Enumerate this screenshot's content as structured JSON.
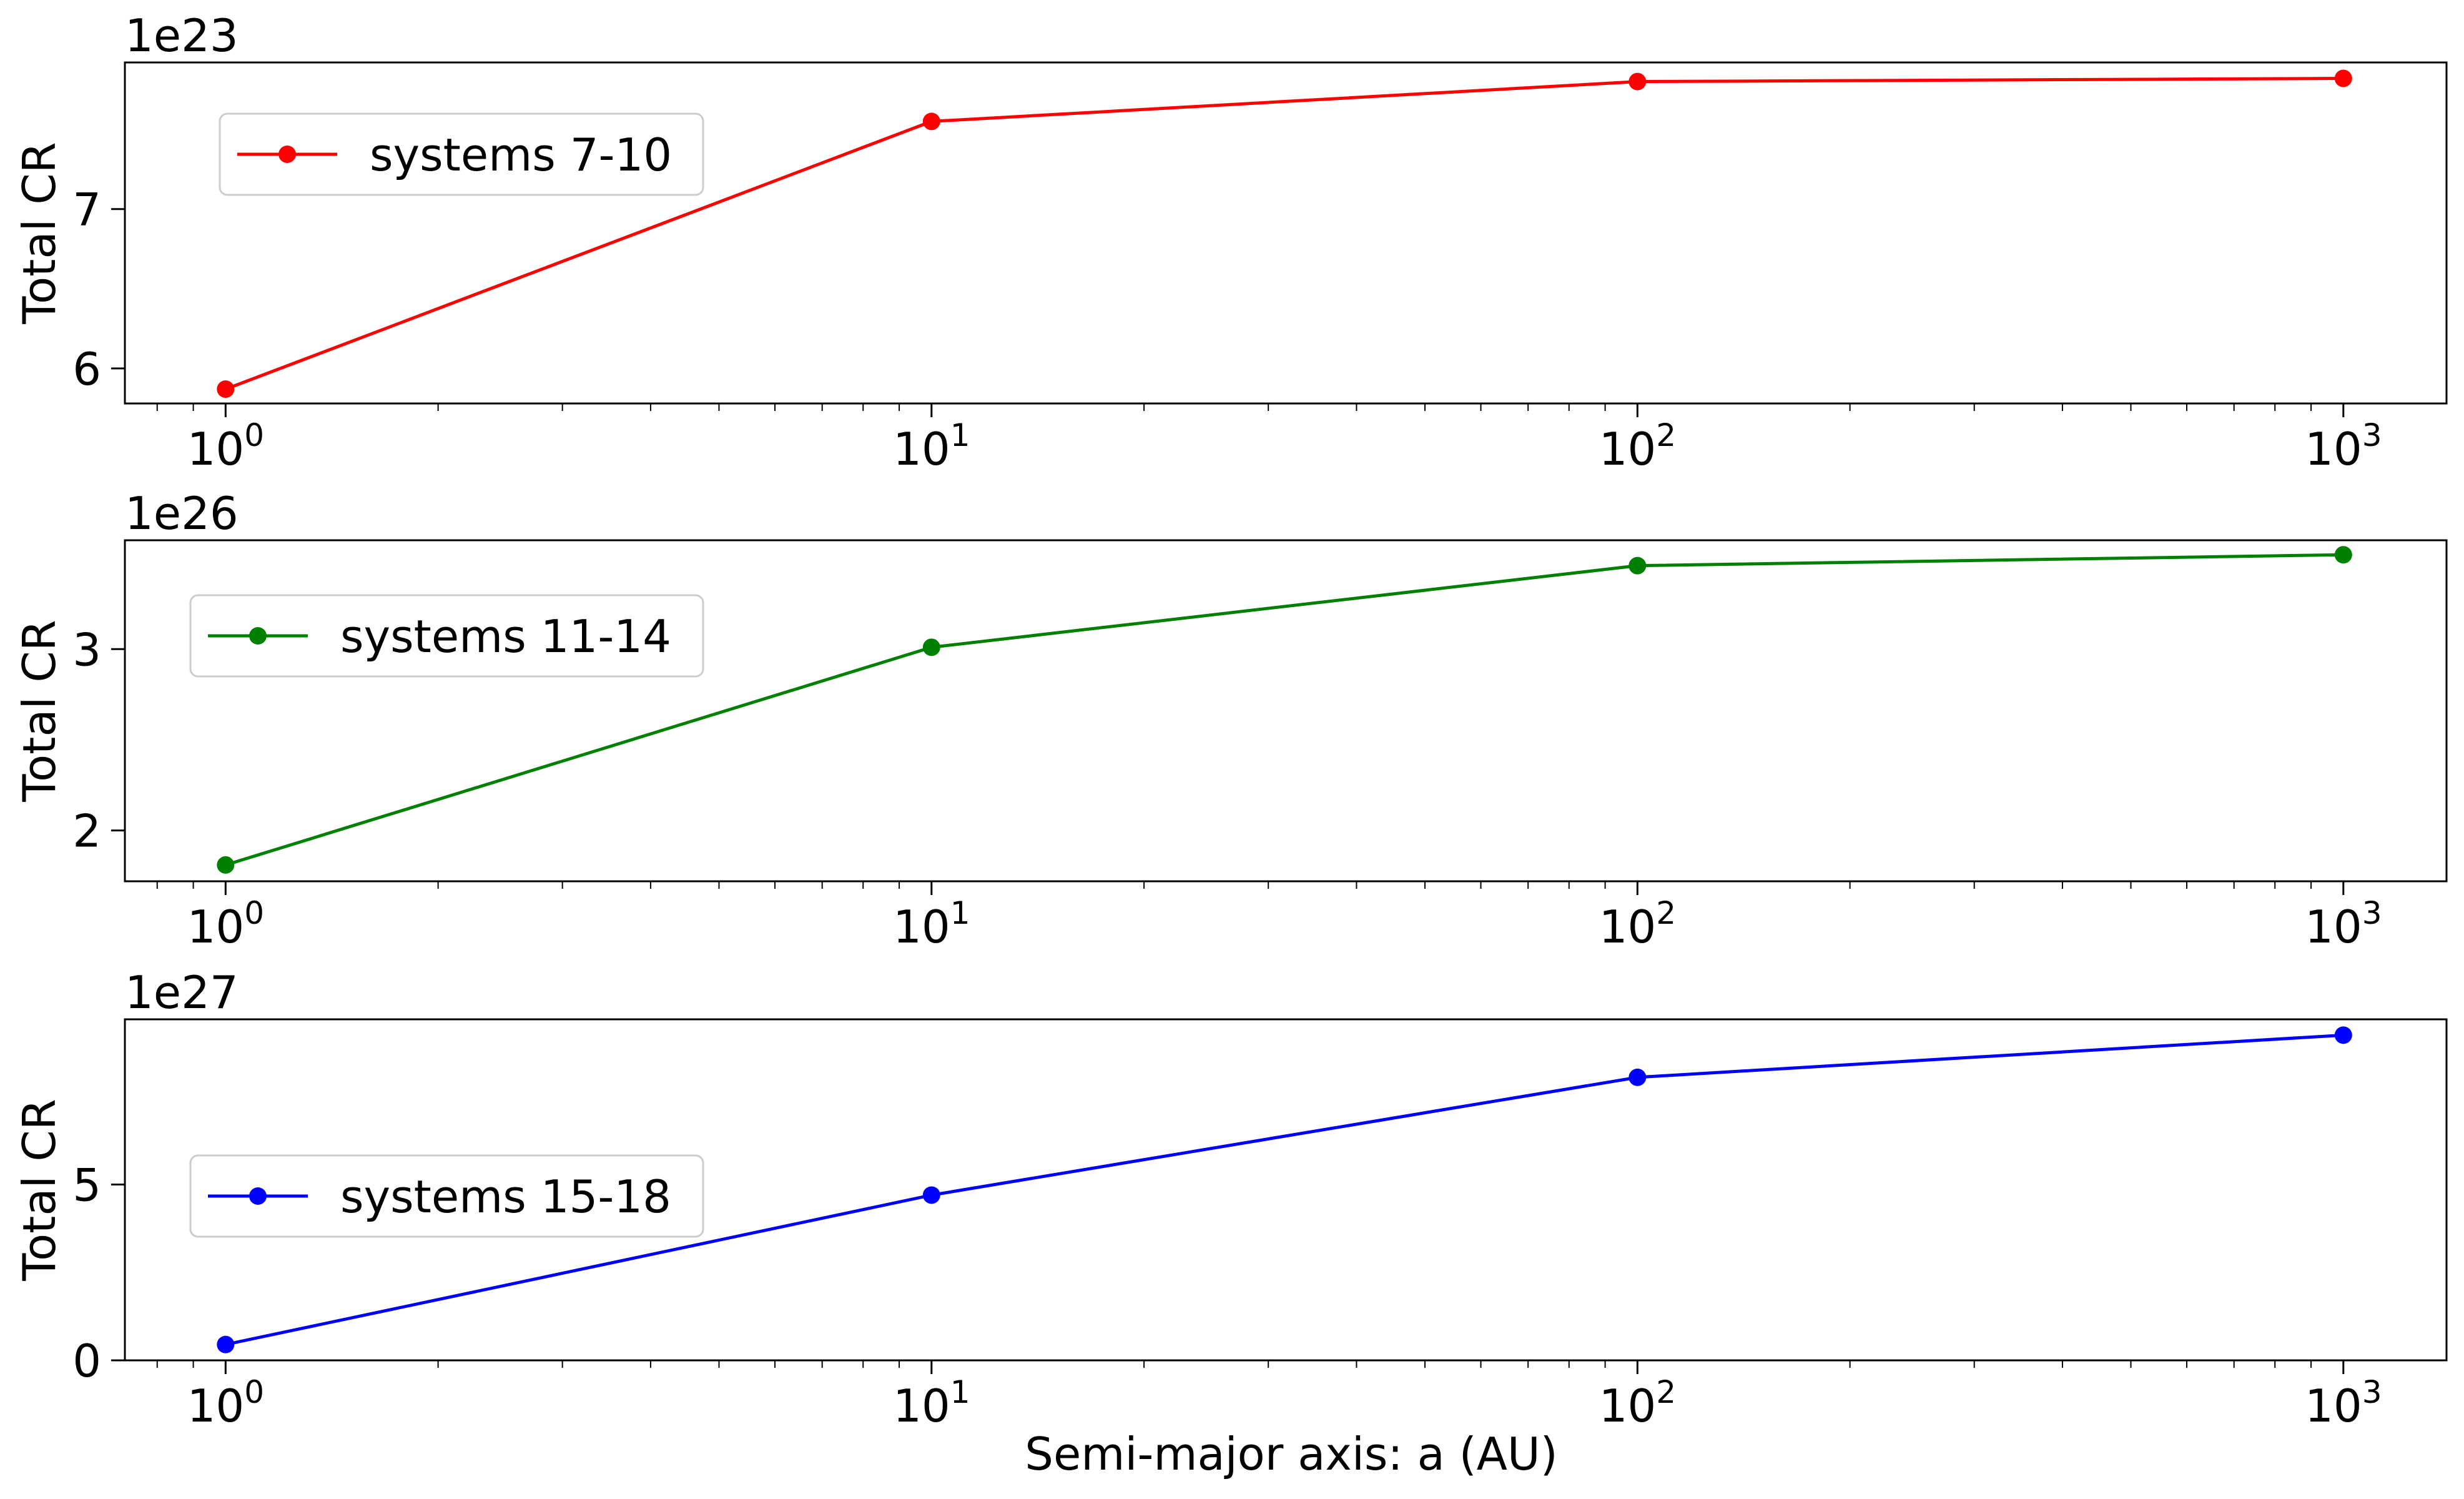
{
  "figure": {
    "xlabel": "Semi-major axis: a (AU)"
  },
  "chart_data": [
    {
      "type": "line",
      "x_scale": "log",
      "xlim": [
        0.72,
        1400
      ],
      "ylim": [
        5.78,
        7.92
      ],
      "x_ticks": [
        1,
        10,
        100,
        1000
      ],
      "x_tick_labels": [
        {
          "base": "10",
          "exp": "0"
        },
        {
          "base": "10",
          "exp": "1"
        },
        {
          "base": "10",
          "exp": "2"
        },
        {
          "base": "10",
          "exp": "3"
        }
      ],
      "y_ticks": [
        6,
        7
      ],
      "y_tick_labels": [
        "6",
        "7"
      ],
      "offset_text": "1e23",
      "ylabel": "Total CR",
      "xlabel": "",
      "legend_position": "upper-left",
      "grid": false,
      "series": [
        {
          "name": "systems 7-10",
          "color": "#ff0000",
          "x": [
            1,
            10,
            100,
            1000
          ],
          "y": [
            5.87,
            7.55,
            7.8,
            7.82
          ]
        }
      ]
    },
    {
      "type": "line",
      "x_scale": "log",
      "xlim": [
        0.72,
        1400
      ],
      "ylim": [
        1.72,
        3.6
      ],
      "x_ticks": [
        1,
        10,
        100,
        1000
      ],
      "x_tick_labels": [
        {
          "base": "10",
          "exp": "0"
        },
        {
          "base": "10",
          "exp": "1"
        },
        {
          "base": "10",
          "exp": "2"
        },
        {
          "base": "10",
          "exp": "3"
        }
      ],
      "y_ticks": [
        2,
        3
      ],
      "y_tick_labels": [
        "2",
        "3"
      ],
      "offset_text": "1e26",
      "ylabel": "Total CR",
      "xlabel": "",
      "legend_position": "upper-left",
      "grid": false,
      "series": [
        {
          "name": "systems 11-14",
          "color": "#008000",
          "x": [
            1,
            10,
            100,
            1000
          ],
          "y": [
            1.81,
            3.01,
            3.46,
            3.52
          ]
        }
      ]
    },
    {
      "type": "line",
      "x_scale": "log",
      "xlim": [
        0.72,
        1400
      ],
      "ylim": [
        0,
        9.7
      ],
      "x_ticks": [
        1,
        10,
        100,
        1000
      ],
      "x_tick_labels": [
        {
          "base": "10",
          "exp": "0"
        },
        {
          "base": "10",
          "exp": "1"
        },
        {
          "base": "10",
          "exp": "2"
        },
        {
          "base": "10",
          "exp": "3"
        }
      ],
      "y_ticks": [
        0,
        5
      ],
      "y_tick_labels": [
        "0",
        "5"
      ],
      "offset_text": "1e27",
      "ylabel": "Total CR",
      "xlabel": "Semi-major axis: a (AU)",
      "legend_position": "center-left",
      "grid": false,
      "series": [
        {
          "name": "systems 15-18",
          "color": "#0000ff",
          "x": [
            1,
            10,
            100,
            1000
          ],
          "y": [
            0.45,
            4.7,
            8.05,
            9.25
          ]
        }
      ]
    }
  ]
}
